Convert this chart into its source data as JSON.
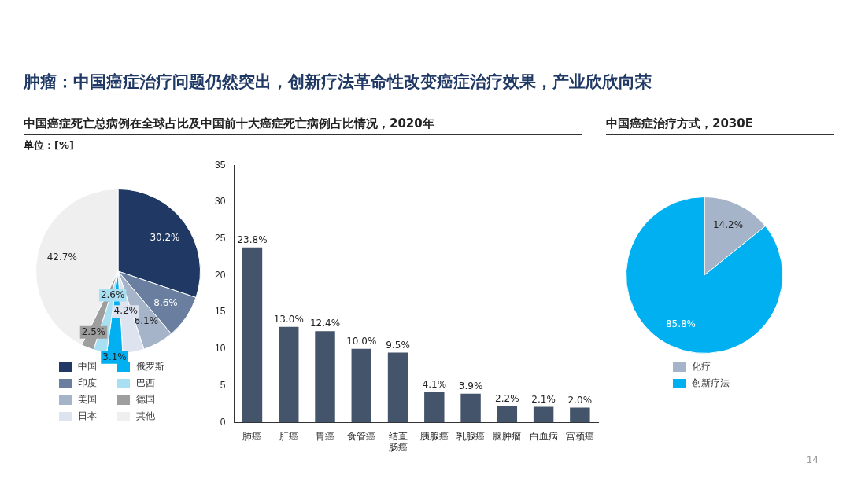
{
  "chart_data": [
    {
      "type": "pie",
      "title": "中国癌症死亡总病例在全球占比及中国前十大癌症死亡病例占比情况，2020年",
      "subtitle": "单位：[%]",
      "categories": [
        "中国",
        "印度",
        "美国",
        "日本",
        "俄罗斯",
        "巴西",
        "德国",
        "其他"
      ],
      "values": [
        30.2,
        8.6,
        6.1,
        4.2,
        3.1,
        2.6,
        2.5,
        42.7
      ],
      "colors": [
        "#1f3864",
        "#6a7fa0",
        "#a5b4c8",
        "#dde4f0",
        "#00b0f0",
        "#a8dff3",
        "#9e9e9e",
        "#efefef"
      ],
      "value_labels": [
        "30.2%",
        "8.6%",
        "6.1%",
        "4.2%",
        "3.1%",
        "2.6%",
        "2.5%",
        "42.7%"
      ],
      "legend": "bottom",
      "annotations": [
        "肿瘤：中国癌症治疗问题仍然突出，创新疗法革命性改变癌症治疗效果，产业欣欣向荣",
        "14"
      ]
    },
    {
      "type": "bar",
      "categories": [
        "肺癌",
        "肝癌",
        "胃癌",
        "食管癌",
        "结直肠癌",
        "胰腺癌",
        "乳腺癌",
        "脑肿瘤",
        "白血病",
        "宫颈癌"
      ],
      "values": [
        23.8,
        13.0,
        12.4,
        10.0,
        9.5,
        4.1,
        3.9,
        2.2,
        2.1,
        2.0
      ],
      "color": "#44546a",
      "ylim": [
        0,
        35
      ],
      "yticks": [
        0,
        5,
        10,
        15,
        20,
        25,
        30,
        35
      ],
      "value_labels": [
        "23.8%",
        "13.0%",
        "12.4%",
        "10.0%",
        "9.5%",
        "4.1%",
        "3.9%",
        "2.2%",
        "2.1%",
        "2.0%"
      ]
    },
    {
      "type": "pie",
      "title": "中国癌症治疗方式，2030E",
      "categories": [
        "化疗",
        "创新疗法"
      ],
      "values": [
        14.2,
        85.8
      ],
      "colors": [
        "#a5b4c8",
        "#00b0f0"
      ],
      "value_labels": [
        "14.2%",
        "85.8%"
      ],
      "legend": "bottom"
    }
  ]
}
